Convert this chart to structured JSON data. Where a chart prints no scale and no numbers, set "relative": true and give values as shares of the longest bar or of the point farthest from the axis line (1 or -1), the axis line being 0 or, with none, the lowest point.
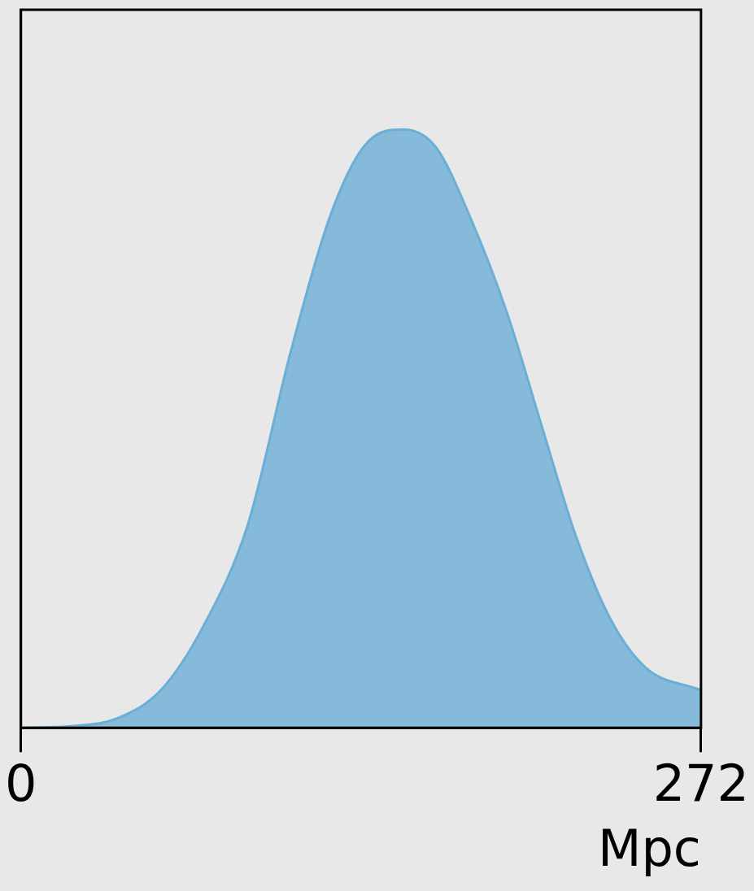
{
  "chart_data": {
    "type": "area",
    "relative": true,
    "xlabel": "Mpc",
    "xlim": [
      0,
      272
    ],
    "xticks": [
      0,
      272
    ],
    "grid": false,
    "legend": false,
    "series": [
      {
        "color": "#6baed6",
        "x": [
          0,
          21,
          38.7,
          56,
          73,
          90.8,
          108,
          125,
          139,
          153,
          166,
          180,
          194.7,
          208.6,
          222,
          236,
          250,
          272
        ],
        "values": [
          0,
          0.003,
          0.016,
          0.063,
          0.17,
          0.34,
          0.63,
          0.87,
          0.98,
          1,
          0.97,
          0.85,
          0.69,
          0.5,
          0.32,
          0.18,
          0.1,
          0.063
        ]
      }
    ]
  }
}
